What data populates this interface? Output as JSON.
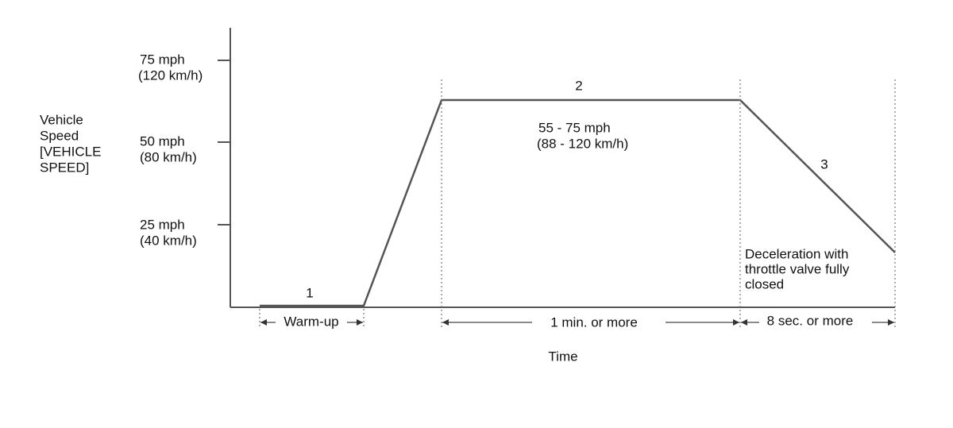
{
  "y_axis": {
    "title": [
      "Vehicle",
      "Speed",
      "[VEHICLE",
      "SPEED]"
    ],
    "ticks": [
      [
        "75 mph",
        "(120 km/h)"
      ],
      [
        "50 mph",
        "(80 km/h)"
      ],
      [
        "25 mph",
        "(40 km/h)"
      ]
    ]
  },
  "phases": [
    {
      "label": "1",
      "duration": "Warm-up"
    },
    {
      "label": "2",
      "speed": [
        "55 - 75 mph",
        "(88 - 120 km/h)"
      ],
      "duration": "1 min. or more"
    },
    {
      "label": "3",
      "note": [
        "Deceleration with",
        "throttle valve fully",
        "closed"
      ],
      "duration": "8 sec. or more"
    }
  ],
  "x_axis": {
    "title": "Time"
  }
}
